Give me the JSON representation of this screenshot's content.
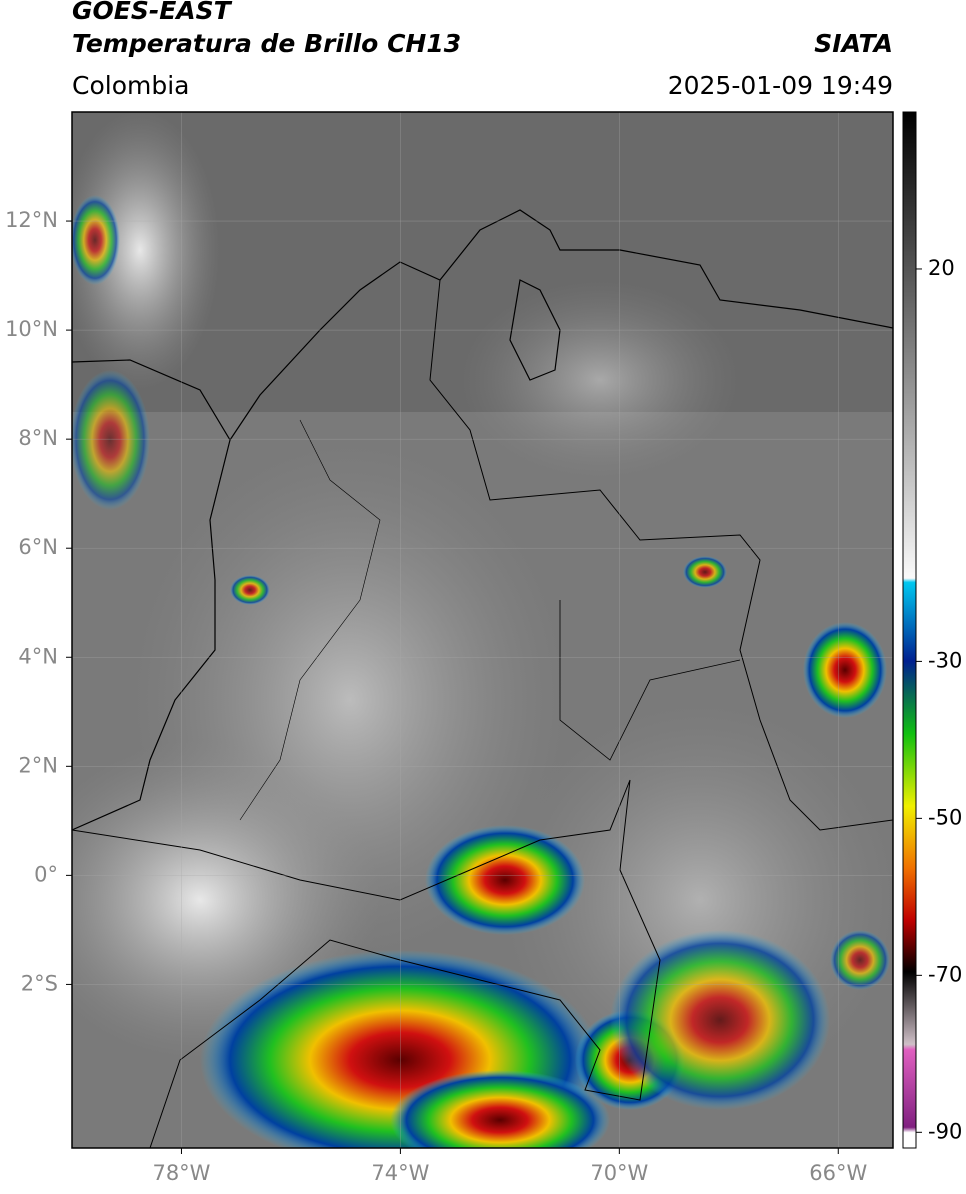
{
  "header": {
    "title_line1": "GOES-EAST",
    "title_line2": "Temperatura de Brillo CH13",
    "source": "SIATA",
    "region": "Colombia",
    "datetime": "2025-01-09 19:49"
  },
  "map": {
    "xlim": [
      -80,
      -65
    ],
    "ylim": [
      -5,
      14
    ],
    "xticks": [
      {
        "value": -78,
        "label": "78°W"
      },
      {
        "value": -74,
        "label": "74°W"
      },
      {
        "value": -70,
        "label": "70°W"
      },
      {
        "value": -66,
        "label": "66°W"
      }
    ],
    "yticks": [
      {
        "value": 12,
        "label": "12°N"
      },
      {
        "value": 10,
        "label": "10°N"
      },
      {
        "value": 8,
        "label": "8°N"
      },
      {
        "value": 6,
        "label": "6°N"
      },
      {
        "value": 4,
        "label": "4°N"
      },
      {
        "value": 2,
        "label": "2°N"
      },
      {
        "value": 0,
        "label": "0°"
      },
      {
        "value": -2,
        "label": "2°S"
      }
    ]
  },
  "colorbar": {
    "range": [
      -92,
      40
    ],
    "ticks": [
      20,
      -30,
      -50,
      -70,
      -90
    ]
  }
}
